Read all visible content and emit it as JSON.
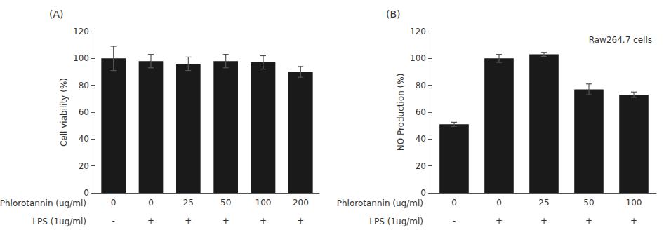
{
  "chart_data": [
    {
      "type": "bar",
      "title": "(A)",
      "categories": [
        "0",
        "0",
        "25",
        "50",
        "100",
        "200"
      ],
      "xlabel": "Phlorotannin (ug/ml)",
      "categories2": [
        "-",
        "+",
        "+",
        "+",
        "+",
        "+"
      ],
      "xlabel2": "LPS (1ug/ml)",
      "values": [
        100,
        98,
        96,
        98,
        97,
        90
      ],
      "errors": [
        9,
        5,
        5,
        5,
        5,
        4
      ],
      "ylabel": "Cell viability (%)",
      "color": "#1a1a1a",
      "ylim": [
        0,
        120
      ],
      "yticks": [
        0,
        20,
        40,
        60,
        80,
        100,
        120
      ],
      "grid": false
    },
    {
      "type": "bar",
      "title": "(B)",
      "categories": [
        "0",
        "0",
        "25",
        "50",
        "100"
      ],
      "xlabel": "Phlorotannin (ug/ml)",
      "categories2": [
        "-",
        "+",
        "+",
        "+",
        "+"
      ],
      "xlabel2": "LPS (1ug/ml)",
      "values": [
        51,
        100,
        103,
        77,
        73
      ],
      "errors": [
        1.5,
        3,
        1.5,
        4,
        2
      ],
      "ylabel": "NO Production (%)",
      "annotation": "Raw264.7 cells",
      "color": "#1a1a1a",
      "ylim": [
        0,
        120
      ],
      "yticks": [
        0,
        20,
        40,
        60,
        80,
        100,
        120
      ],
      "grid": false
    }
  ]
}
